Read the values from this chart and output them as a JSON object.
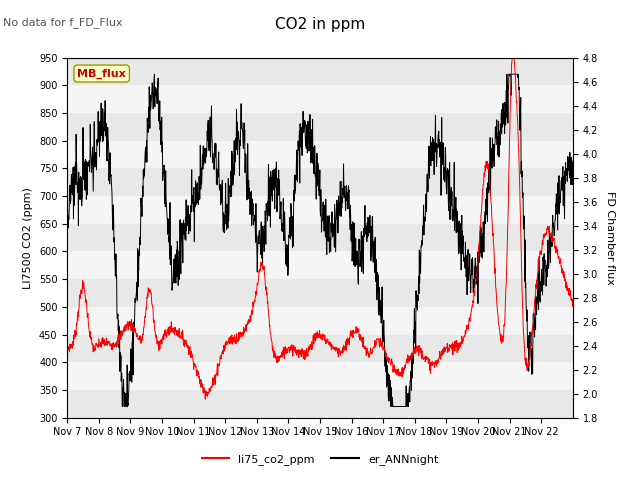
{
  "title": "CO2 in ppm",
  "ylabel_left": "LI7500 CO2 (ppm)",
  "ylabel_right": "FD Chamber flux",
  "ylim_left": [
    300,
    950
  ],
  "ylim_right": [
    1.8,
    4.8
  ],
  "yticks_left": [
    300,
    350,
    400,
    450,
    500,
    550,
    600,
    650,
    700,
    750,
    800,
    850,
    900,
    950
  ],
  "yticks_right": [
    1.8,
    2.0,
    2.2,
    2.4,
    2.6,
    2.8,
    3.0,
    3.2,
    3.4,
    3.6,
    3.8,
    4.0,
    4.2,
    4.4,
    4.6,
    4.8
  ],
  "no_data_text": "No data for f_FD_Flux",
  "legend_box_label": "MB_flux",
  "xlabel_ticks": [
    "Nov 7",
    "Nov 8",
    "Nov 9",
    "Nov 10",
    "Nov 11",
    "Nov 12",
    "Nov 13",
    "Nov 14",
    "Nov 15",
    "Nov 16",
    "Nov 17",
    "Nov 18",
    "Nov 19",
    "Nov 20",
    "Nov 21",
    "Nov 22"
  ],
  "line1_color": "#ff0000",
  "line1_label": "li75_co2_ppm",
  "line2_color": "#000000",
  "line2_label": "er_ANNnight",
  "band_colors": [
    "#e8e8e8",
    "#f5f5f5"
  ]
}
